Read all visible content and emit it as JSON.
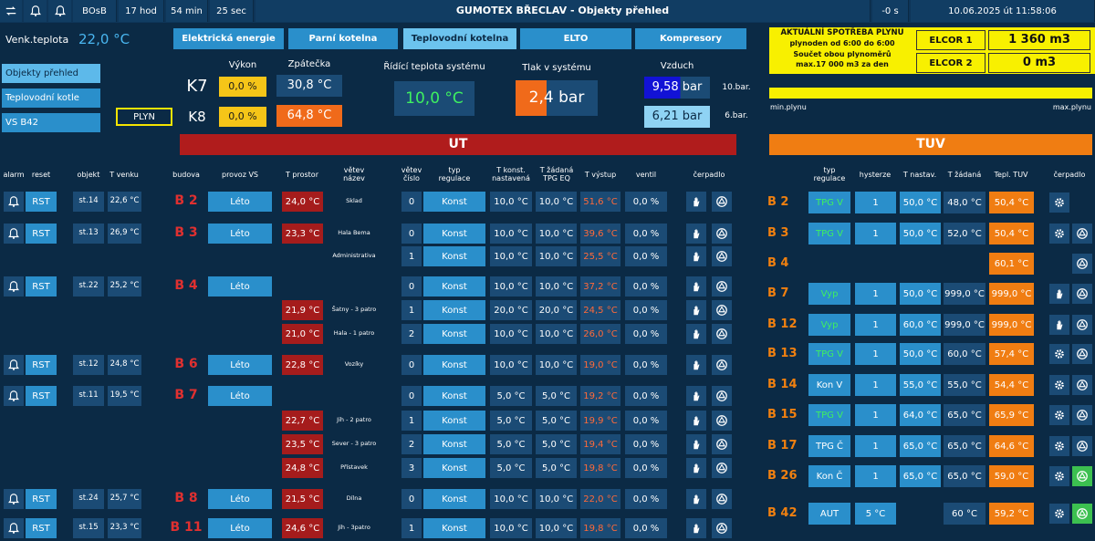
{
  "top_bar": {
    "counter": "BOsB",
    "hours": "17 hod",
    "minutes": "54 min",
    "seconds": "25 sec",
    "title": "GUMOTEX BŘECLAV - Objekty přehled",
    "offset": "-0 s",
    "datetime": "10.06.2025 út 11:58:06"
  },
  "outdoor": {
    "label": "Venk.teplota",
    "value": "22,0 °C"
  },
  "nav": [
    "Objekty přehled",
    "Teplovodní kotle",
    "VS B42"
  ],
  "plyn_button": "PLYN",
  "tabs": [
    "Elektrická energie",
    "Parní kotelna",
    "Teplovodní kotelna",
    "ELTO",
    "Kompresory"
  ],
  "boilers": {
    "headers": [
      "Výkon",
      "Zpátečka"
    ],
    "rows": [
      {
        "name": "K7",
        "power": "0,0 %",
        "return": "30,8 °C"
      },
      {
        "name": "K8",
        "power": "0,0 %",
        "return": "64,8 °C"
      }
    ]
  },
  "system": {
    "control_label": "Řídící teplota systému",
    "control_value": "10,0 °C",
    "pressure_label": "Tlak v systému",
    "pressure_value": "2,4 bar",
    "air_label": "Vzduch",
    "air": [
      {
        "value": "9,58 bar",
        "limit": "10.bar."
      },
      {
        "value": "6,21 bar",
        "limit": "6.bar."
      }
    ]
  },
  "gas": {
    "lines": [
      "AKTUÁLNÍ SPOTŘEBA PLYNU",
      "plynoden od 6:00 do 6:00",
      "Součet obou plynoměrů",
      "max.17 000 m3 za den"
    ],
    "meters": [
      {
        "name": "ELCOR 1",
        "value": "1 360 m3"
      },
      {
        "name": "ELCOR 2",
        "value": "0 m3"
      }
    ],
    "min_label": "min.plynu",
    "max_label": "max.plynu"
  },
  "ut": {
    "title": "UT",
    "headers": [
      "alarm",
      "reset",
      "objekt",
      "T venku",
      "budova",
      "provoz VS",
      "T prostor",
      "větev\nnázev",
      "větev\nčíslo",
      "typ\nregulace",
      "T konst.\nnastavená",
      "T žádaná\nTPG EQ",
      "T výstup",
      "ventil",
      "čerpadlo"
    ],
    "rows": [
      [
        "RST",
        "st.14",
        "22,6 °C",
        "B 2",
        "Léto",
        "24,0 °C",
        "Sklad",
        "0",
        "Konst",
        "10,0 °C",
        "10,0 °C",
        "51,6 °C",
        "0,0 %"
      ],
      [
        "RST",
        "st.13",
        "26,9 °C",
        "B 3",
        "Léto",
        "23,3 °C",
        "Hala Bema",
        "0",
        "Konst",
        "10,0 °C",
        "10,0 °C",
        "39,6 °C",
        "0,0 %"
      ],
      [
        null,
        null,
        null,
        null,
        null,
        null,
        "Administrativa",
        "1",
        "Konst",
        "10,0 °C",
        "10,0 °C",
        "25,5 °C",
        "0,0 %"
      ],
      [
        "RST",
        "st.22",
        "25,2 °C",
        "B 4",
        "Léto",
        null,
        null,
        "0",
        "Konst",
        "10,0 °C",
        "10,0 °C",
        "37,2 °C",
        "0,0 %"
      ],
      [
        null,
        null,
        null,
        null,
        null,
        "21,9 °C",
        "Šatny - 3 patro",
        "1",
        "Konst",
        "20,0 °C",
        "20,0 °C",
        "24,5 °C",
        "0,0 %"
      ],
      [
        null,
        null,
        null,
        null,
        null,
        "21,0 °C",
        "Hala - 1 patro",
        "2",
        "Konst",
        "10,0 °C",
        "10,0 °C",
        "26,0 °C",
        "0,0 %"
      ],
      [
        "RST",
        "st.12",
        "24,8 °C",
        "B 6",
        "Léto",
        "22,8 °C",
        "Vozíky",
        "0",
        "Konst",
        "10,0 °C",
        "10,0 °C",
        "19,0 °C",
        "0,0 %"
      ],
      [
        "RST",
        "st.11",
        "19,5 °C",
        "B 7",
        "Léto",
        null,
        null,
        "0",
        "Konst",
        "5,0 °C",
        "5,0 °C",
        "19,2 °C",
        "0,0 %"
      ],
      [
        null,
        null,
        null,
        null,
        null,
        "22,7 °C",
        "Jih - 2 patro",
        "1",
        "Konst",
        "5,0 °C",
        "5,0 °C",
        "19,9 °C",
        "0,0 %"
      ],
      [
        null,
        null,
        null,
        null,
        null,
        "23,5 °C",
        "Sever - 3 patro",
        "2",
        "Konst",
        "5,0 °C",
        "5,0 °C",
        "19,4 °C",
        "0,0 %"
      ],
      [
        null,
        null,
        null,
        null,
        null,
        "24,8 °C",
        "Přístavek",
        "3",
        "Konst",
        "5,0 °C",
        "5,0 °C",
        "19,8 °C",
        "0,0 %"
      ],
      [
        "RST",
        "st.24",
        "25,7 °C",
        "B 8",
        "Léto",
        "21,5 °C",
        "Dílna",
        "0",
        "Konst",
        "10,0 °C",
        "10,0 °C",
        "22,0 °C",
        "0,0 %"
      ],
      [
        "RST",
        "st.15",
        "23,3 °C",
        "B 11",
        "Léto",
        "24,6 °C",
        "Jih - 3patro",
        "1",
        "Konst",
        "10,0 °C",
        "10,0 °C",
        "19,8 °C",
        "0,0 %"
      ]
    ]
  },
  "tuv": {
    "title": "TUV",
    "headers": [
      "typ\nregulace",
      "hysterze",
      "T nastav.",
      "T žádaná",
      "Tepl. TUV",
      "čerpadlo"
    ],
    "rows": [
      [
        "B 2",
        "TPG V",
        "1",
        "50,0 °C",
        "48,0 °C",
        "50,4 °C"
      ],
      [
        "B 3",
        "TPG V",
        "1",
        "50,0 °C",
        "52,0 °C",
        "50,4 °C"
      ],
      [
        "B 4",
        null,
        null,
        null,
        null,
        "60,1 °C"
      ],
      [
        "B 7",
        "Vyp",
        "1",
        "50,0 °C",
        "999,0 °C",
        "999,0 °C"
      ],
      [
        "B 12",
        "Vyp",
        "1",
        "60,0 °C",
        "999,0 °C",
        "999,0 °C"
      ],
      [
        "B 13",
        "TPG V",
        "1",
        "50,0 °C",
        "60,0 °C",
        "57,4 °C"
      ],
      [
        "B 14",
        "Kon V",
        "1",
        "55,0 °C",
        "55,0 °C",
        "54,4 °C"
      ],
      [
        "B 15",
        "TPG V",
        "1",
        "64,0 °C",
        "65,0 °C",
        "65,9 °C"
      ],
      [
        "B 17",
        "TPG Č",
        "1",
        "65,0 °C",
        "65,0 °C",
        "64,6 °C"
      ],
      [
        "B 26",
        "Kon Č",
        "1",
        "65,0 °C",
        "65,0 °C",
        "59,0 °C"
      ],
      [
        "B 42",
        "AUT",
        "5 °C",
        null,
        "60 °C",
        "59,2 °C"
      ]
    ]
  }
}
